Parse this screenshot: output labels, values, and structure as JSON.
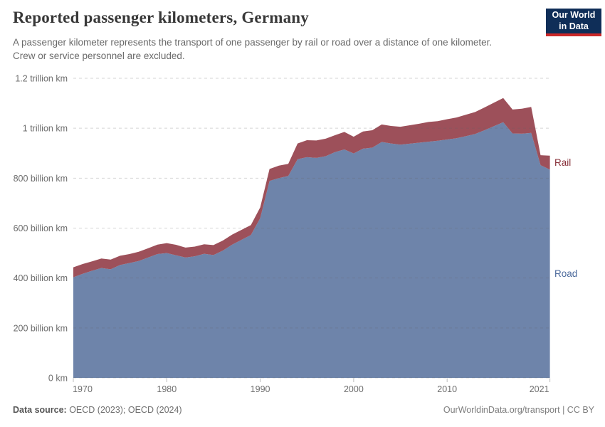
{
  "header": {
    "title": "Reported passenger kilometers, Germany",
    "subtitle": "A passenger kilometer represents the transport of one passenger by rail or road over a distance of one kilometer. Crew or service personnel are excluded.",
    "logo": {
      "line1": "Our World",
      "line2": "in Data",
      "bg_color": "#0f2e58",
      "accent_color": "#cb2828"
    }
  },
  "footer": {
    "sources_label": "Data source:",
    "sources": " OECD (2023); OECD (2024)",
    "rights": "OurWorldinData.org/transport | CC BY"
  },
  "chart_data": {
    "type": "area",
    "stacked": true,
    "unit": "billion km",
    "xlim": [
      1970,
      2021
    ],
    "ylim": [
      0,
      1200
    ],
    "grid": "dashed",
    "legend_position": "right-edge-labels",
    "x": [
      1970,
      1971,
      1972,
      1973,
      1974,
      1975,
      1976,
      1977,
      1978,
      1979,
      1980,
      1981,
      1982,
      1983,
      1984,
      1985,
      1986,
      1987,
      1988,
      1989,
      1990,
      1991,
      1992,
      1993,
      1994,
      1995,
      1996,
      1997,
      1998,
      1999,
      2000,
      2001,
      2002,
      2003,
      2004,
      2005,
      2006,
      2007,
      2008,
      2009,
      2010,
      2011,
      2012,
      2013,
      2014,
      2015,
      2016,
      2017,
      2018,
      2019,
      2020,
      2021
    ],
    "series": [
      {
        "name": "Road",
        "color": "#6e84aa",
        "label_color": "#4C6A9C",
        "values": [
          403,
          417,
          429,
          440,
          435,
          452,
          460,
          468,
          482,
          496,
          500,
          491,
          482,
          487,
          497,
          492,
          510,
          534,
          553,
          572,
          640,
          789,
          800,
          809,
          876,
          884,
          881,
          888,
          904,
          915,
          899,
          918,
          922,
          945,
          939,
          934,
          938,
          942,
          946,
          950,
          955,
          960,
          968,
          977,
          992,
          1008,
          1024,
          979,
          978,
          981,
          852,
          834
        ]
      },
      {
        "name": "Rail",
        "color": "#9d505a",
        "label_color": "#883039",
        "values": [
          40,
          39,
          38,
          38,
          39,
          37,
          36,
          37,
          37,
          38,
          40,
          42,
          40,
          39,
          38,
          40,
          40,
          40,
          40,
          40,
          43,
          48,
          50,
          48,
          63,
          68,
          70,
          70,
          68,
          70,
          67,
          69,
          70,
          70,
          70,
          72,
          74,
          76,
          79,
          78,
          81,
          83,
          86,
          88,
          91,
          94,
          97,
          96,
          100,
          104,
          40,
          56
        ]
      }
    ],
    "x_ticks": [
      "1970",
      "1980",
      "1990",
      "2000",
      "2010",
      "2021"
    ],
    "y_ticks": [
      {
        "value": 0,
        "label": "0 km"
      },
      {
        "value": 200,
        "label": "200 billion km"
      },
      {
        "value": 400,
        "label": "400 billion km"
      },
      {
        "value": 600,
        "label": "600 billion km"
      },
      {
        "value": 800,
        "label": "800 billion km"
      },
      {
        "value": 1000,
        "label": "1 trillion km"
      },
      {
        "value": 1200,
        "label": "1.2 trillion km"
      }
    ]
  }
}
